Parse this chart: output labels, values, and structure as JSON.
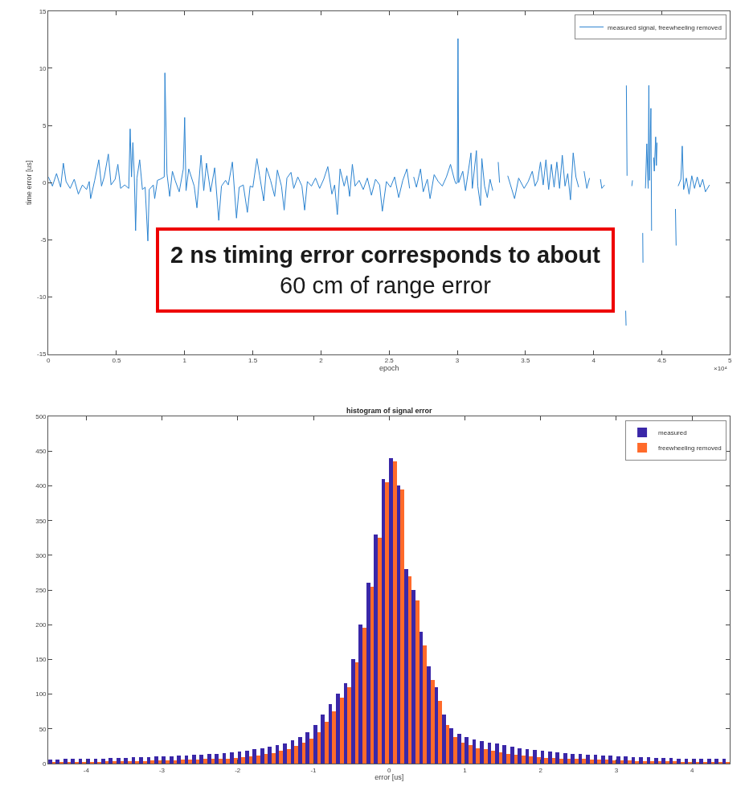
{
  "chart_data": [
    {
      "type": "line",
      "xlabel": "epoch",
      "ylabel": "time error [us]",
      "legend": "top right",
      "marker": "none",
      "line_style": "solid",
      "xlim": [
        0,
        5
      ],
      "xticks": [
        0,
        0.5,
        1,
        1.5,
        2,
        2.5,
        3,
        3.5,
        4,
        4.5,
        5
      ],
      "ylim": [
        -15,
        15
      ],
      "yticks": [
        -15,
        -10,
        -5,
        0,
        5,
        10,
        15
      ],
      "annotations": [
        "×10⁴",
        "2 ns timing error corresponds to about\n60 cm of range error"
      ],
      "series": [
        {
          "name": "measured signal, freewheeling removed",
          "color": "#2b83d0",
          "x": [
            0,
            0.03,
            0.06,
            0.09,
            0.11,
            0.13,
            0.16,
            0.19,
            0.22,
            0.25,
            0.28,
            0.3,
            0.31,
            0.34,
            0.37,
            0.39,
            0.41,
            0.44,
            0.46,
            0.49,
            0.51,
            0.53,
            0.56,
            0.59,
            0.6,
            0.61,
            0.62,
            0.63,
            0.64,
            0.65,
            0.67,
            0.69,
            0.71,
            0.73,
            0.74,
            0.77,
            0.78,
            0.8,
            0.82,
            0.85,
            0.855,
            0.87,
            0.89,
            0.91,
            0.93,
            0.96,
            0.99,
            1.0,
            1.01,
            1.03,
            1.07,
            1.09,
            1.12,
            1.14,
            1.16,
            1.19,
            1.22,
            1.25,
            1.27,
            1.3,
            1.32,
            1.35,
            1.38,
            1.4,
            1.43,
            1.46,
            1.48,
            1.5,
            1.53,
            1.55,
            1.58,
            1.6,
            1.63,
            1.66,
            1.68,
            1.71,
            1.73,
            1.75,
            1.78,
            1.8,
            1.83,
            1.86,
            1.88,
            1.9,
            1.93,
            1.96,
            1.99,
            2.02,
            2.05,
            2.08,
            2.1,
            2.12,
            2.14,
            2.17,
            2.19,
            2.21,
            2.23,
            2.25,
            2.28,
            2.31,
            2.34,
            2.37,
            2.4,
            2.43,
            2.45,
            2.48,
            2.51,
            2.54,
            2.57,
            2.6,
            2.63,
            2.65,
            2.66,
            2.68,
            2.7,
            2.73,
            2.75,
            2.78,
            2.8,
            2.83,
            2.86,
            2.89,
            2.92,
            2.95,
            2.98,
            2.99,
            3.0,
            3.005,
            3.01,
            3.04,
            3.06,
            3.1,
            3.11,
            3.14,
            3.15,
            3.17,
            3.18,
            3.2,
            3.22,
            3.24,
            3.26,
            3.28,
            3.3,
            3.31,
            3.33,
            3.37,
            3.4,
            3.42,
            3.45,
            3.49,
            3.52,
            3.55,
            3.57,
            3.59,
            3.61,
            3.63,
            3.65,
            3.67,
            3.69,
            3.71,
            3.73,
            3.75,
            3.77,
            3.79,
            3.81,
            3.83,
            3.85,
            3.87,
            3.89,
            3.91,
            3.93,
            3.95,
            3.97,
            4.0,
            4.05,
            4.06,
            4.08,
            4.1,
            4.235,
            4.238,
            4.239,
            4.24,
            4.245,
            4.246,
            4.28,
            4.285,
            4.286,
            4.36,
            4.362,
            4.363,
            4.38,
            4.39,
            4.4,
            4.405,
            4.41,
            4.42,
            4.425,
            4.43,
            4.44,
            4.445,
            4.455,
            4.46,
            4.465,
            4.47,
            4.6,
            4.605,
            4.607,
            4.62,
            4.64,
            4.65,
            4.66,
            4.68,
            4.7,
            4.72,
            4.74,
            4.76,
            4.78,
            4.8,
            4.82,
            4.85
          ],
          "values": [
            0.5,
            -0.3,
            0.8,
            -0.4,
            1.7,
            0.1,
            -0.5,
            0.3,
            -1.0,
            -0.2,
            -0.6,
            0.1,
            -1.4,
            0.2,
            2.0,
            -0.3,
            0.5,
            2.5,
            -0.2,
            0.3,
            1.6,
            -0.5,
            -0.2,
            -0.5,
            4.7,
            0.5,
            3.5,
            0.8,
            -4.2,
            0.4,
            2.0,
            -0.6,
            -0.4,
            -5.1,
            -0.6,
            -0.2,
            -1.4,
            0.2,
            0.3,
            0.5,
            9.6,
            0.8,
            -1.2,
            1.0,
            0.2,
            -0.8,
            1.2,
            5.7,
            -0.7,
            1.2,
            -0.3,
            -2.2,
            2.4,
            -0.7,
            1.7,
            -0.8,
            1.3,
            -3.3,
            -0.3,
            0.2,
            -0.2,
            1.8,
            -3.1,
            -0.4,
            -0.2,
            -2.6,
            -0.3,
            -0.4,
            2.1,
            0.6,
            -1.6,
            1.3,
            0.2,
            -1.2,
            1.1,
            -0.3,
            -2.4,
            0.4,
            0.9,
            -0.5,
            0.5,
            -0.3,
            -2.4,
            0.1,
            -0.3,
            0.4,
            -0.5,
            0.3,
            1.4,
            -1.0,
            -0.2,
            -2.8,
            1.2,
            -0.3,
            0.6,
            -1.2,
            1.6,
            -0.3,
            0.2,
            -0.6,
            0.4,
            -1.1,
            0.3,
            -0.2,
            -2.5,
            0.1,
            -0.4,
            0.5,
            -1.3,
            0.2,
            1.2,
            -0.5,
            null,
            0.5,
            -0.4,
            1.2,
            -0.8,
            0.3,
            -1.4,
            0.7,
            0.1,
            -0.3,
            0.5,
            1.6,
            0.2,
            -0.1,
            0.0,
            12.6,
            0.0,
            1.0,
            -0.7,
            2.6,
            -0.5,
            2.8,
            -0.3,
            -2.0,
            2.1,
            -0.3,
            -1.3,
            0.3,
            -0.7,
            null,
            1.8,
            0.0,
            null,
            0.6,
            -0.6,
            -1.4,
            0.4,
            -0.5,
            0.1,
            1.0,
            -0.3,
            0.2,
            1.8,
            -0.2,
            2.0,
            -0.6,
            1.6,
            -0.4,
            1.8,
            -0.5,
            2.4,
            -0.3,
            0.8,
            -1.5,
            2.6,
            0.5,
            -0.4,
            null,
            1.0,
            -0.5,
            0.4,
            null,
            0.3,
            -0.5,
            -0.2,
            null,
            -11.2,
            -12.5,
            null,
            8.5,
            0.6,
            null,
            -0.3,
            0.2,
            null,
            -4.4,
            -7.0,
            null,
            -0.5,
            3.4,
            -0.5,
            8.5,
            0.2,
            6.5,
            -4.2,
            null,
            2.2,
            1.0,
            4.0,
            1.5,
            3.5,
            null,
            -2.3,
            -5.5,
            null,
            -0.3,
            0.3,
            3.2,
            -0.6,
            0.4,
            -1.0,
            0.6,
            -0.5,
            0.5,
            -0.4,
            0.3,
            -0.8,
            -0.2
          ]
        }
      ]
    },
    {
      "type": "histogram",
      "title": "histogram of signal error",
      "xlabel": "error [us]",
      "legend": "top right",
      "xlim": [
        -4.5,
        4.5
      ],
      "xticks": [
        -4,
        -3,
        -2,
        -1,
        0,
        1,
        2,
        3,
        4
      ],
      "ylim": [
        0,
        500
      ],
      "yticks": [
        0,
        50,
        100,
        150,
        200,
        250,
        300,
        350,
        400,
        450,
        500
      ],
      "bins": [
        -4.5,
        -4.4,
        -4.3,
        -4.2,
        -4.1,
        -4.0,
        -3.9,
        -3.8,
        -3.7,
        -3.6,
        -3.5,
        -3.4,
        -3.3,
        -3.2,
        -3.1,
        -3.0,
        -2.9,
        -2.8,
        -2.7,
        -2.6,
        -2.5,
        -2.4,
        -2.3,
        -2.2,
        -2.1,
        -2.0,
        -1.9,
        -1.8,
        -1.7,
        -1.6,
        -1.5,
        -1.4,
        -1.3,
        -1.2,
        -1.1,
        -1.0,
        -0.9,
        -0.8,
        -0.7,
        -0.6,
        -0.5,
        -0.4,
        -0.3,
        -0.2,
        -0.1,
        0.0,
        0.1,
        0.2,
        0.3,
        0.4,
        0.5,
        0.6,
        0.7,
        0.8,
        0.9,
        1.0,
        1.1,
        1.2,
        1.3,
        1.4,
        1.5,
        1.6,
        1.7,
        1.8,
        1.9,
        2.0,
        2.1,
        2.2,
        2.3,
        2.4,
        2.5,
        2.6,
        2.7,
        2.8,
        2.9,
        3.0,
        3.1,
        3.2,
        3.3,
        3.4,
        3.5,
        3.6,
        3.7,
        3.8,
        3.9,
        4.0,
        4.1,
        4.2,
        4.3,
        4.4,
        4.5
      ],
      "series": [
        {
          "name": "measured",
          "color": "#3a27a8",
          "values": [
            5,
            5,
            6,
            6,
            6,
            7,
            7,
            7,
            8,
            8,
            8,
            9,
            9,
            9,
            10,
            10,
            10,
            11,
            11,
            12,
            12,
            13,
            14,
            15,
            16,
            17,
            18,
            20,
            22,
            24,
            26,
            29,
            33,
            38,
            45,
            55,
            70,
            85,
            100,
            115,
            150,
            200,
            260,
            330,
            410,
            440,
            400,
            280,
            250,
            190,
            140,
            110,
            70,
            50,
            42,
            38,
            34,
            32,
            30,
            28,
            26,
            24,
            22,
            20,
            19,
            18,
            17,
            16,
            15,
            14,
            13,
            12,
            12,
            11,
            11,
            10,
            10,
            9,
            9,
            9,
            8,
            8,
            8,
            7,
            7,
            7,
            7,
            6,
            6,
            6
          ]
        },
        {
          "name": "freewheeling removed",
          "color": "#ff6a2a",
          "values": [
            2,
            2,
            2,
            2,
            2,
            2,
            2,
            3,
            3,
            3,
            3,
            3,
            3,
            4,
            4,
            4,
            4,
            5,
            5,
            5,
            6,
            6,
            7,
            7,
            8,
            9,
            10,
            11,
            13,
            15,
            18,
            21,
            25,
            30,
            36,
            45,
            60,
            75,
            95,
            110,
            145,
            195,
            255,
            325,
            405,
            435,
            395,
            270,
            235,
            170,
            120,
            90,
            55,
            38,
            30,
            26,
            22,
            20,
            18,
            16,
            14,
            12,
            11,
            10,
            9,
            8,
            8,
            7,
            7,
            6,
            6,
            5,
            5,
            5,
            4,
            4,
            4,
            3,
            3,
            3,
            3,
            3,
            3,
            2,
            2,
            2,
            2,
            2,
            2,
            2
          ]
        }
      ]
    }
  ]
}
